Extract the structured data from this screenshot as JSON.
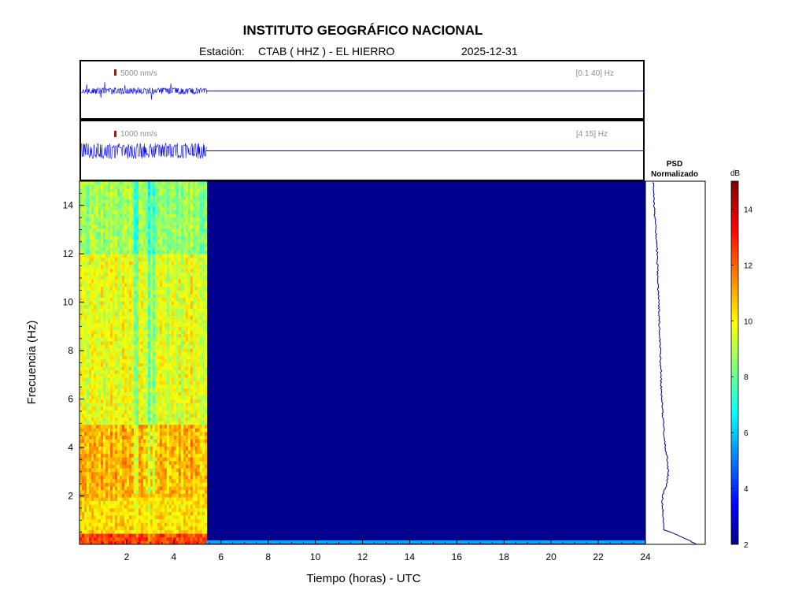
{
  "header": {
    "title": "INSTITUTO GEOGRÁFICO NACIONAL",
    "station_label": "Estación:",
    "station": "CTAB ( HHZ ) - EL HIERRO",
    "date": "2025-12-31"
  },
  "chart_data": [
    {
      "type": "line",
      "panel": "seismogram-broadband",
      "annotation": "[0.1 40] Hz",
      "scale_label": "5000 nm/s",
      "data_extent_hours": [
        0,
        5.4
      ],
      "x_range_hours": [
        0,
        24
      ]
    },
    {
      "type": "line",
      "panel": "seismogram-filtered",
      "annotation": "[4 15] Hz",
      "scale_label": "1000 nm/s",
      "data_extent_hours": [
        0,
        5.4
      ],
      "x_range_hours": [
        0,
        24
      ]
    },
    {
      "type": "heatmap",
      "panel": "spectrogram",
      "xlabel": "Tiempo (horas) - UTC",
      "ylabel": "Frecuencia  (Hz)",
      "xlim": [
        0,
        24
      ],
      "ylim": [
        0,
        15
      ],
      "x_ticks": [
        2,
        4,
        6,
        8,
        10,
        12,
        14,
        16,
        18,
        20,
        22,
        24
      ],
      "y_ticks": [
        2,
        4,
        6,
        8,
        10,
        12,
        14
      ],
      "data_end_hour": 5.4,
      "colormap": "jet",
      "color_range_db": [
        2,
        15
      ],
      "approx_level_db": {
        "0-0.5Hz": 12.5,
        "0.5-2Hz": 10.5,
        "2-5Hz": 11,
        "5-12Hz": 9.8,
        "12-15Hz": 8.8,
        "no_data": 2
      }
    },
    {
      "type": "line",
      "panel": "psd",
      "title": "PSD\nNormalizado",
      "title_line1": "PSD",
      "title_line2": "Normalizado",
      "frequency_hz": [
        0,
        0.3,
        0.6,
        1,
        1.5,
        2,
        2.5,
        3,
        3.5,
        4,
        5,
        6,
        7,
        8,
        9,
        10,
        11,
        12,
        13,
        14,
        15
      ],
      "relative_level": [
        0.9,
        0.6,
        0.25,
        0.23,
        0.22,
        0.21,
        0.3,
        0.33,
        0.31,
        0.27,
        0.23,
        0.2,
        0.18,
        0.17,
        0.15,
        0.14,
        0.12,
        0.11,
        0.08,
        0.05,
        0.03
      ]
    },
    {
      "type": "colorbar",
      "label": "dB",
      "ticks": [
        2,
        4,
        6,
        8,
        10,
        12,
        14
      ],
      "range": [
        2,
        15
      ]
    }
  ],
  "colors": {
    "trace": "#0000ff",
    "no_data": "#00008f",
    "scale_bar": "#dd0000",
    "annotation": "#8c8c8c"
  }
}
